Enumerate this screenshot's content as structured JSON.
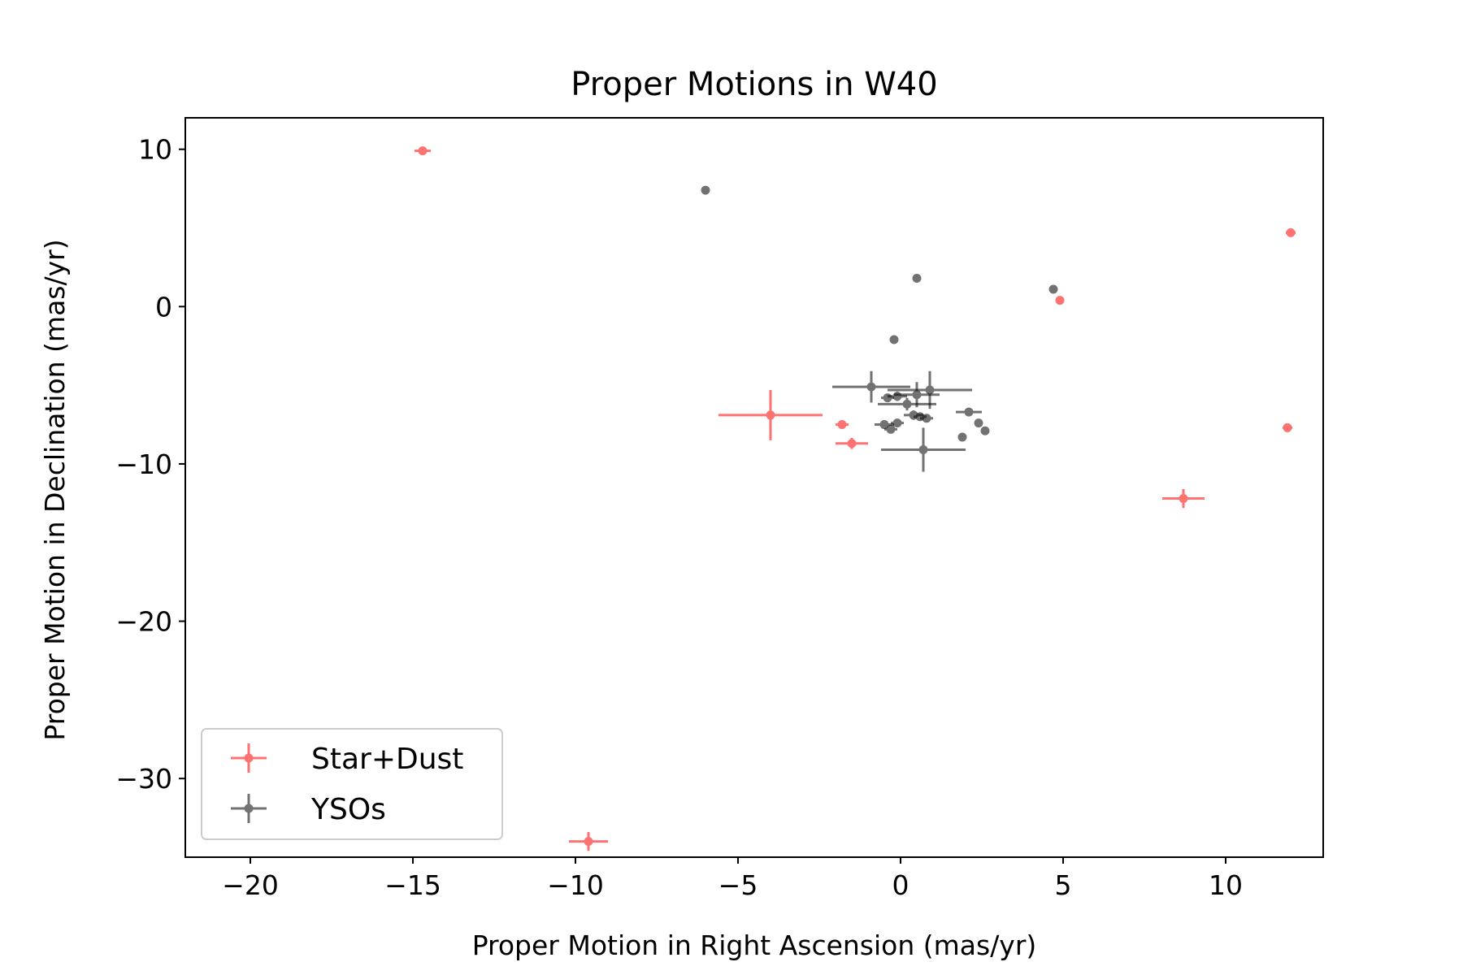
{
  "chart_data": {
    "type": "scatter",
    "title": "Proper Motions in W40",
    "xlabel": "Proper Motion in Right Ascension (mas/yr)",
    "ylabel": "Proper Motion in Declination (mas/yr)",
    "xlim": [
      -22,
      13
    ],
    "ylim": [
      -35,
      12
    ],
    "xticks": [
      -20,
      -15,
      -10,
      -5,
      0,
      5,
      10
    ],
    "yticks": [
      -30,
      -20,
      -10,
      0,
      10
    ],
    "grid": false,
    "legend_position": "lower-left",
    "series": [
      {
        "name": "Star+Dust",
        "color": "#ff0000",
        "points": [
          {
            "x": -14.7,
            "y": 9.9,
            "xerr": 0.25,
            "yerr": 0.25
          },
          {
            "x": -4.0,
            "y": -6.9,
            "xerr": 1.6,
            "yerr": 1.6
          },
          {
            "x": -1.8,
            "y": -7.5,
            "xerr": 0.2,
            "yerr": 0.2
          },
          {
            "x": -1.5,
            "y": -8.7,
            "xerr": 0.5,
            "yerr": 0.35
          },
          {
            "x": -9.6,
            "y": -34.0,
            "xerr": 0.6,
            "yerr": 0.6
          },
          {
            "x": 4.9,
            "y": 0.4,
            "xerr": 0.1,
            "yerr": 0.1
          },
          {
            "x": 8.7,
            "y": -12.2,
            "xerr": 0.65,
            "yerr": 0.6
          },
          {
            "x": 11.9,
            "y": -7.7,
            "xerr": 0.15,
            "yerr": 0.15
          },
          {
            "x": 12.0,
            "y": 4.7,
            "xerr": 0.15,
            "yerr": 0.15
          }
        ]
      },
      {
        "name": "YSOs",
        "color": "#000000",
        "points": [
          {
            "x": -6.0,
            "y": 7.4,
            "xerr": 0.1,
            "yerr": 0.1
          },
          {
            "x": 0.5,
            "y": 1.8,
            "xerr": 0.1,
            "yerr": 0.1
          },
          {
            "x": -0.2,
            "y": -2.1,
            "xerr": 0.1,
            "yerr": 0.1
          },
          {
            "x": 4.7,
            "y": 1.1,
            "xerr": 0.1,
            "yerr": 0.1
          },
          {
            "x": -0.9,
            "y": -5.1,
            "xerr": 1.2,
            "yerr": 1.0
          },
          {
            "x": 0.9,
            "y": -5.3,
            "xerr": 1.3,
            "yerr": 1.2
          },
          {
            "x": 0.5,
            "y": -5.6,
            "xerr": 0.7,
            "yerr": 0.8
          },
          {
            "x": -0.4,
            "y": -5.8,
            "xerr": 0.2,
            "yerr": 0.2
          },
          {
            "x": -0.1,
            "y": -5.7,
            "xerr": 0.3,
            "yerr": 0.3
          },
          {
            "x": 0.2,
            "y": -6.2,
            "xerr": 0.9,
            "yerr": 0.4
          },
          {
            "x": 0.4,
            "y": -6.9,
            "xerr": 0.3,
            "yerr": 0.3
          },
          {
            "x": 0.6,
            "y": -7.0,
            "xerr": 0.2,
            "yerr": 0.2
          },
          {
            "x": 0.8,
            "y": -7.1,
            "xerr": 0.2,
            "yerr": 0.2
          },
          {
            "x": -0.1,
            "y": -7.4,
            "xerr": 0.2,
            "yerr": 0.2
          },
          {
            "x": -0.5,
            "y": -7.5,
            "xerr": 0.3,
            "yerr": 0.2
          },
          {
            "x": -0.3,
            "y": -7.8,
            "xerr": 0.2,
            "yerr": 0.2
          },
          {
            "x": 0.7,
            "y": -9.1,
            "xerr": 1.3,
            "yerr": 1.4
          },
          {
            "x": 2.1,
            "y": -6.7,
            "xerr": 0.4,
            "yerr": 0.2
          },
          {
            "x": 2.4,
            "y": -7.4,
            "xerr": 0.1,
            "yerr": 0.1
          },
          {
            "x": 2.6,
            "y": -7.9,
            "xerr": 0.1,
            "yerr": 0.1
          },
          {
            "x": 1.9,
            "y": -8.3,
            "xerr": 0.1,
            "yerr": 0.1
          }
        ]
      }
    ]
  }
}
